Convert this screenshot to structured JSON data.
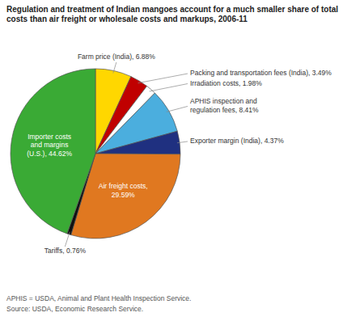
{
  "chart_data": {
    "type": "pie",
    "title": "Regulation and treatment of Indian mangoes account for a much smaller share of total\ncosts than air freight or wholesale costs and markups, 2006-11",
    "categories": [
      "Farm price (India), 6.88%",
      "Packing and transportation fees (India), 3.49%",
      "Irradiation costs, 1.98%",
      "APHIS inspection and\nregulation fees, 8.41%",
      "Exporter margin (India), 4.37%",
      "Air freight costs,\n29.59%",
      "Tariffs, 0.76%",
      "Importer costs\nand margins\n(U.S.), 44.62%"
    ],
    "values": [
      6.88,
      3.49,
      1.98,
      8.41,
      4.37,
      29.59,
      0.76,
      44.62
    ],
    "colors": [
      "#FFD700",
      "#C00000",
      "#FFFFFF",
      "#4BAEDE",
      "#1F3080",
      "#E07820",
      "#111111",
      "#3AAA35"
    ],
    "data_labels": true,
    "annotations": [
      "APHIS = USDA, Animal and Plant Health Inspection Service.",
      "Source: USDA, Economic Research Service."
    ]
  }
}
